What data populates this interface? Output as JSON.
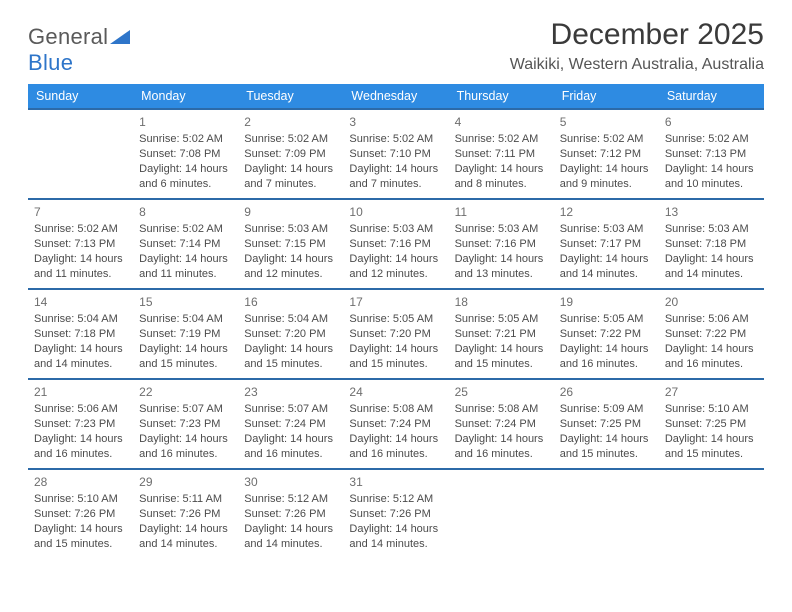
{
  "brand": {
    "general": "General",
    "blue": "Blue"
  },
  "title": "December 2025",
  "location": "Waikiki, Western Australia, Australia",
  "colors": {
    "header_bg": "#2e8be2",
    "week_divider": "#2c6aa8",
    "title_text": "#3a3a3a",
    "body_text": "#4b4b4b",
    "daynum_text": "#6e6e6e",
    "blue": "#2e75c9"
  },
  "daysOfWeek": [
    "Sunday",
    "Monday",
    "Tuesday",
    "Wednesday",
    "Thursday",
    "Friday",
    "Saturday"
  ],
  "weeks": [
    [
      null,
      {
        "n": "1",
        "sr": "5:02 AM",
        "ss": "7:08 PM",
        "dl": "14 hours and 6 minutes."
      },
      {
        "n": "2",
        "sr": "5:02 AM",
        "ss": "7:09 PM",
        "dl": "14 hours and 7 minutes."
      },
      {
        "n": "3",
        "sr": "5:02 AM",
        "ss": "7:10 PM",
        "dl": "14 hours and 7 minutes."
      },
      {
        "n": "4",
        "sr": "5:02 AM",
        "ss": "7:11 PM",
        "dl": "14 hours and 8 minutes."
      },
      {
        "n": "5",
        "sr": "5:02 AM",
        "ss": "7:12 PM",
        "dl": "14 hours and 9 minutes."
      },
      {
        "n": "6",
        "sr": "5:02 AM",
        "ss": "7:13 PM",
        "dl": "14 hours and 10 minutes."
      }
    ],
    [
      {
        "n": "7",
        "sr": "5:02 AM",
        "ss": "7:13 PM",
        "dl": "14 hours and 11 minutes."
      },
      {
        "n": "8",
        "sr": "5:02 AM",
        "ss": "7:14 PM",
        "dl": "14 hours and 11 minutes."
      },
      {
        "n": "9",
        "sr": "5:03 AM",
        "ss": "7:15 PM",
        "dl": "14 hours and 12 minutes."
      },
      {
        "n": "10",
        "sr": "5:03 AM",
        "ss": "7:16 PM",
        "dl": "14 hours and 12 minutes."
      },
      {
        "n": "11",
        "sr": "5:03 AM",
        "ss": "7:16 PM",
        "dl": "14 hours and 13 minutes."
      },
      {
        "n": "12",
        "sr": "5:03 AM",
        "ss": "7:17 PM",
        "dl": "14 hours and 14 minutes."
      },
      {
        "n": "13",
        "sr": "5:03 AM",
        "ss": "7:18 PM",
        "dl": "14 hours and 14 minutes."
      }
    ],
    [
      {
        "n": "14",
        "sr": "5:04 AM",
        "ss": "7:18 PM",
        "dl": "14 hours and 14 minutes."
      },
      {
        "n": "15",
        "sr": "5:04 AM",
        "ss": "7:19 PM",
        "dl": "14 hours and 15 minutes."
      },
      {
        "n": "16",
        "sr": "5:04 AM",
        "ss": "7:20 PM",
        "dl": "14 hours and 15 minutes."
      },
      {
        "n": "17",
        "sr": "5:05 AM",
        "ss": "7:20 PM",
        "dl": "14 hours and 15 minutes."
      },
      {
        "n": "18",
        "sr": "5:05 AM",
        "ss": "7:21 PM",
        "dl": "14 hours and 15 minutes."
      },
      {
        "n": "19",
        "sr": "5:05 AM",
        "ss": "7:22 PM",
        "dl": "14 hours and 16 minutes."
      },
      {
        "n": "20",
        "sr": "5:06 AM",
        "ss": "7:22 PM",
        "dl": "14 hours and 16 minutes."
      }
    ],
    [
      {
        "n": "21",
        "sr": "5:06 AM",
        "ss": "7:23 PM",
        "dl": "14 hours and 16 minutes."
      },
      {
        "n": "22",
        "sr": "5:07 AM",
        "ss": "7:23 PM",
        "dl": "14 hours and 16 minutes."
      },
      {
        "n": "23",
        "sr": "5:07 AM",
        "ss": "7:24 PM",
        "dl": "14 hours and 16 minutes."
      },
      {
        "n": "24",
        "sr": "5:08 AM",
        "ss": "7:24 PM",
        "dl": "14 hours and 16 minutes."
      },
      {
        "n": "25",
        "sr": "5:08 AM",
        "ss": "7:24 PM",
        "dl": "14 hours and 16 minutes."
      },
      {
        "n": "26",
        "sr": "5:09 AM",
        "ss": "7:25 PM",
        "dl": "14 hours and 15 minutes."
      },
      {
        "n": "27",
        "sr": "5:10 AM",
        "ss": "7:25 PM",
        "dl": "14 hours and 15 minutes."
      }
    ],
    [
      {
        "n": "28",
        "sr": "5:10 AM",
        "ss": "7:26 PM",
        "dl": "14 hours and 15 minutes."
      },
      {
        "n": "29",
        "sr": "5:11 AM",
        "ss": "7:26 PM",
        "dl": "14 hours and 14 minutes."
      },
      {
        "n": "30",
        "sr": "5:12 AM",
        "ss": "7:26 PM",
        "dl": "14 hours and 14 minutes."
      },
      {
        "n": "31",
        "sr": "5:12 AM",
        "ss": "7:26 PM",
        "dl": "14 hours and 14 minutes."
      },
      null,
      null,
      null
    ]
  ],
  "labels": {
    "sunrise": "Sunrise: ",
    "sunset": "Sunset: ",
    "daylight": "Daylight: "
  }
}
